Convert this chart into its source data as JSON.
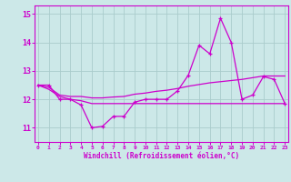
{
  "x": [
    0,
    1,
    2,
    3,
    4,
    5,
    6,
    7,
    8,
    9,
    10,
    11,
    12,
    13,
    14,
    15,
    16,
    17,
    18,
    19,
    20,
    21,
    22,
    23
  ],
  "line1": [
    12.5,
    12.5,
    12.0,
    12.0,
    11.8,
    11.0,
    11.05,
    11.4,
    11.4,
    11.9,
    12.0,
    12.0,
    12.0,
    12.3,
    12.85,
    13.9,
    13.6,
    14.85,
    14.0,
    12.0,
    12.15,
    12.8,
    12.7,
    11.85
  ],
  "line2": [
    12.5,
    12.35,
    12.1,
    12.0,
    11.95,
    11.85,
    11.85,
    11.85,
    11.85,
    11.85,
    11.85,
    11.85,
    11.85,
    11.85,
    11.85,
    11.85,
    11.85,
    11.85,
    11.85,
    11.85,
    11.85,
    11.85,
    11.85,
    11.85
  ],
  "line3": [
    12.5,
    12.42,
    12.15,
    12.1,
    12.1,
    12.05,
    12.05,
    12.08,
    12.1,
    12.18,
    12.22,
    12.28,
    12.32,
    12.38,
    12.46,
    12.52,
    12.58,
    12.62,
    12.66,
    12.7,
    12.76,
    12.82,
    12.82,
    12.82
  ],
  "bg_color": "#cce8e8",
  "line_color": "#cc00cc",
  "grid_color": "#aacccc",
  "xlabel": "Windchill (Refroidissement éolien,°C)",
  "ylim": [
    10.5,
    15.3
  ],
  "yticks": [
    11,
    12,
    13,
    14,
    15
  ],
  "xtick_labels": [
    "0",
    "1",
    "2",
    "3",
    "4",
    "5",
    "6",
    "7",
    "8",
    "9",
    "10",
    "11",
    "12",
    "13",
    "14",
    "15",
    "16",
    "17",
    "18",
    "19",
    "20",
    "21",
    "22",
    "23"
  ]
}
